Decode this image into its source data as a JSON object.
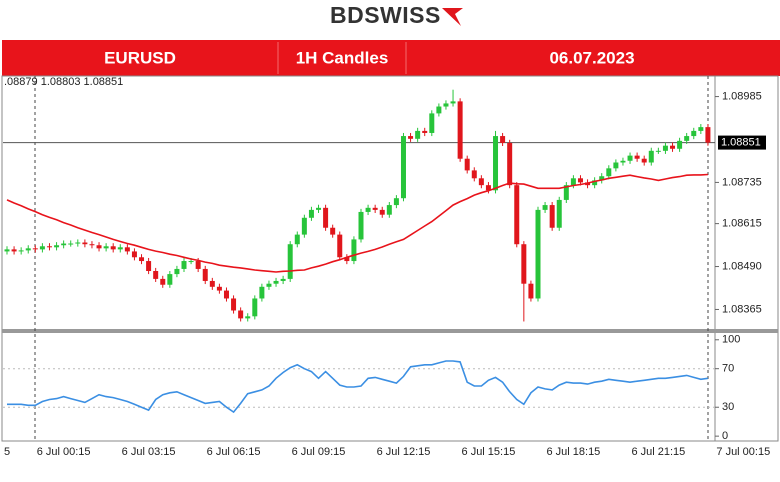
{
  "header": {
    "logo": "BDSWISS",
    "symbol": "EURUSD",
    "timeframe": "1H Candles",
    "date": "06.07.2023"
  },
  "chart_data": {
    "type": "candlestick",
    "ohlc_readout": ".08879 1.08803 1.08851",
    "last_price": {
      "value": 1.08851,
      "label": "1.08851"
    },
    "up_color": "#27c43a",
    "down_color": "#e0161c",
    "categories": [
      "5",
      null,
      null,
      null,
      null,
      null,
      null,
      null,
      "6 Jul 00:15",
      null,
      null,
      null,
      null,
      null,
      null,
      null,
      null,
      null,
      null,
      null,
      "6 Jul 03:15",
      null,
      null,
      null,
      null,
      null,
      null,
      null,
      null,
      null,
      null,
      null,
      "6 Jul 06:15",
      null,
      null,
      null,
      null,
      null,
      null,
      null,
      null,
      null,
      null,
      null,
      "6 Jul 09:15",
      null,
      null,
      null,
      null,
      null,
      null,
      null,
      null,
      null,
      null,
      null,
      "6 Jul 12:15",
      null,
      null,
      null,
      null,
      null,
      null,
      null,
      null,
      null,
      null,
      null,
      "6 Jul 15:15",
      null,
      null,
      null,
      null,
      null,
      null,
      null,
      null,
      null,
      null,
      null,
      "6 Jul 18:15",
      null,
      null,
      null,
      null,
      null,
      null,
      null,
      null,
      null,
      null,
      null,
      "6 Jul 21:15",
      null,
      null,
      null,
      null,
      null,
      null,
      null,
      null,
      null,
      null,
      null,
      "7 Jul 00:15"
    ],
    "open": [
      1.08534,
      1.0854,
      1.08534,
      1.08537,
      1.08543,
      1.0854,
      1.08549,
      1.08546,
      1.08552,
      1.08557,
      1.08557,
      1.0856,
      1.08555,
      1.08552,
      1.08543,
      1.08549,
      1.0854,
      1.08546,
      1.08534,
      1.08517,
      1.08506,
      1.08477,
      1.08454,
      1.08437,
      1.08468,
      1.08483,
      1.08506,
      1.08506,
      1.08483,
      1.08448,
      1.08431,
      1.0842,
      1.08397,
      1.08362,
      1.08339,
      1.08345,
      1.08397,
      1.08431,
      1.0844,
      1.08448,
      1.08454,
      1.08555,
      1.08583,
      1.08632,
      1.08655,
      1.08661,
      1.08603,
      1.08583,
      1.08517,
      1.08506,
      1.08569,
      1.08649,
      1.08661,
      1.08655,
      1.08641,
      1.08669,
      1.08689,
      1.0887,
      1.08862,
      1.08885,
      1.08879,
      1.08936,
      1.08956,
      1.08965,
      1.08971,
      1.08804,
      1.0877,
      1.08747,
      1.08727,
      1.08712,
      1.0887,
      1.0885,
      1.08727,
      1.08555,
      1.0844,
      1.08397,
      1.08655,
      1.08669,
      1.08603,
      1.08684,
      1.08727,
      1.08747,
      1.08735,
      1.08727,
      1.08741,
      1.08753,
      1.08776,
      1.08793,
      1.08798,
      1.08813,
      1.08804,
      1.08793,
      1.08827,
      1.08827,
      1.08842,
      1.08833,
      1.08856,
      1.0887,
      1.08885,
      1.08896,
      null,
      null,
      null,
      null,
      null
    ],
    "high": [
      1.08549,
      1.08549,
      1.08546,
      1.08552,
      1.08552,
      1.08558,
      1.08558,
      1.08561,
      1.08566,
      1.08566,
      1.08569,
      1.08569,
      1.08564,
      1.08561,
      1.08558,
      1.08558,
      1.08555,
      1.08555,
      1.08543,
      1.08526,
      1.08515,
      1.08486,
      1.08463,
      1.08477,
      1.08492,
      1.08515,
      1.08515,
      1.08515,
      1.08492,
      1.08457,
      1.0844,
      1.08429,
      1.08406,
      1.08371,
      1.08354,
      1.08406,
      1.0844,
      1.08449,
      1.08457,
      1.08463,
      1.08564,
      1.08592,
      1.08641,
      1.08664,
      1.0867,
      1.0867,
      1.08612,
      1.08592,
      1.08526,
      1.08578,
      1.08658,
      1.0867,
      1.0867,
      1.08664,
      1.08678,
      1.08698,
      1.08879,
      1.08879,
      1.08894,
      1.08894,
      1.08945,
      1.08965,
      1.08974,
      1.09005,
      1.0898,
      1.08813,
      1.08779,
      1.08756,
      1.08736,
      1.08885,
      1.08879,
      1.08859,
      1.08736,
      1.08564,
      1.08449,
      1.08664,
      1.08678,
      1.08678,
      1.08693,
      1.08736,
      1.08756,
      1.08756,
      1.08744,
      1.0875,
      1.08762,
      1.08785,
      1.08802,
      1.08807,
      1.08822,
      1.08822,
      1.08813,
      1.08836,
      1.08836,
      1.08851,
      1.08851,
      1.08865,
      1.08879,
      1.08894,
      1.08905,
      1.08905,
      null,
      null,
      null,
      null,
      null
    ],
    "low": [
      1.08525,
      1.08525,
      1.08525,
      1.08528,
      1.08531,
      1.08531,
      1.08537,
      1.08537,
      1.08543,
      1.08548,
      1.08548,
      1.08546,
      1.08543,
      1.08534,
      1.08534,
      1.08531,
      1.08531,
      1.08525,
      1.08508,
      1.08497,
      1.08468,
      1.08445,
      1.08428,
      1.08428,
      1.08459,
      1.08474,
      1.08497,
      1.08474,
      1.08439,
      1.08422,
      1.08411,
      1.08388,
      1.08353,
      1.0833,
      1.0833,
      1.08336,
      1.08388,
      1.08422,
      1.08431,
      1.08439,
      1.08445,
      1.08546,
      1.08574,
      1.08623,
      1.08646,
      1.08594,
      1.08574,
      1.08508,
      1.08497,
      1.08497,
      1.0856,
      1.0864,
      1.08646,
      1.08632,
      1.08632,
      1.0866,
      1.0868,
      1.08853,
      1.08853,
      1.0887,
      1.0887,
      1.08927,
      1.08947,
      1.08956,
      1.08795,
      1.08761,
      1.08738,
      1.08718,
      1.08703,
      1.08703,
      1.08841,
      1.08718,
      1.08546,
      1.0833,
      1.08388,
      1.08388,
      1.08646,
      1.08594,
      1.08594,
      1.08675,
      1.08718,
      1.08726,
      1.08718,
      1.08718,
      1.08732,
      1.08744,
      1.08767,
      1.08784,
      1.08789,
      1.08795,
      1.08784,
      1.08784,
      1.08818,
      1.08818,
      1.08824,
      1.08824,
      1.08847,
      1.08861,
      1.08876,
      1.08842,
      null,
      null,
      null,
      null,
      null
    ],
    "close": [
      1.0854,
      1.08534,
      1.08537,
      1.08543,
      1.0854,
      1.08549,
      1.08546,
      1.08552,
      1.08557,
      1.08557,
      1.0856,
      1.08555,
      1.08552,
      1.08543,
      1.08549,
      1.0854,
      1.08546,
      1.08534,
      1.08517,
      1.08506,
      1.08477,
      1.08454,
      1.08437,
      1.08468,
      1.08483,
      1.08506,
      1.08506,
      1.08483,
      1.08448,
      1.08431,
      1.0842,
      1.08397,
      1.08362,
      1.08339,
      1.08345,
      1.08397,
      1.08431,
      1.0844,
      1.08448,
      1.08454,
      1.08555,
      1.08583,
      1.08632,
      1.08655,
      1.08661,
      1.08603,
      1.08583,
      1.08517,
      1.08506,
      1.08569,
      1.08649,
      1.08661,
      1.08655,
      1.08641,
      1.08669,
      1.08689,
      1.0887,
      1.08862,
      1.08885,
      1.08879,
      1.08936,
      1.08956,
      1.08965,
      1.08971,
      1.08804,
      1.0877,
      1.08747,
      1.08727,
      1.08712,
      1.0887,
      1.0885,
      1.08727,
      1.08555,
      1.0844,
      1.08397,
      1.08655,
      1.08669,
      1.08603,
      1.08684,
      1.08727,
      1.08747,
      1.08735,
      1.08727,
      1.08741,
      1.08753,
      1.08776,
      1.08793,
      1.08798,
      1.08813,
      1.08804,
      1.08793,
      1.08827,
      1.08827,
      1.08842,
      1.08833,
      1.08856,
      1.0887,
      1.08885,
      1.08896,
      1.08851,
      null,
      null,
      null,
      null,
      null
    ],
    "ma": {
      "color": "#e8131b",
      "values": [
        1.08684,
        1.08675,
        1.08667,
        1.08658,
        1.0865,
        1.08641,
        1.08633,
        1.08626,
        1.08618,
        1.08611,
        1.08603,
        1.08596,
        1.08589,
        1.08583,
        1.08576,
        1.08569,
        1.08563,
        1.08557,
        1.08552,
        1.08546,
        1.0854,
        1.08535,
        1.08531,
        1.08526,
        1.08522,
        1.08517,
        1.08512,
        1.08508,
        1.08503,
        1.08499,
        1.08494,
        1.08491,
        1.08488,
        1.08486,
        1.08483,
        1.0848,
        1.08478,
        1.08476,
        1.08474,
        1.08476,
        1.08477,
        1.08479,
        1.0848,
        1.08486,
        1.08491,
        1.08497,
        1.08504,
        1.0851,
        1.08517,
        1.08523,
        1.08529,
        1.08534,
        1.0854,
        1.08547,
        1.08555,
        1.08562,
        1.08569,
        1.08582,
        1.08595,
        1.08608,
        1.08621,
        1.08637,
        1.08653,
        1.08669,
        1.08679,
        1.08688,
        1.08698,
        1.08705,
        1.08711,
        1.08718,
        1.08726,
        1.08733,
        1.08731,
        1.0873,
        1.08724,
        1.08718,
        1.08718,
        1.08718,
        1.08718,
        1.08722,
        1.08726,
        1.08729,
        1.08733,
        1.08738,
        1.08742,
        1.08747,
        1.0875,
        1.08753,
        1.08756,
        1.08752,
        1.08748,
        1.08745,
        1.08741,
        1.08745,
        1.08749,
        1.08752,
        1.08756,
        1.08757,
        1.08757,
        1.08758,
        null,
        null,
        null,
        null,
        null
      ]
    },
    "ylim": [
      1.08311,
      1.09042
    ],
    "yticks": [
      1.08365,
      {
        "value": 1.0849,
        "label": "1.08490"
      },
      1.08615,
      1.08735,
      1.08985
    ],
    "rsi": {
      "color": "#3b8fe3",
      "values": [
        33,
        33,
        33,
        32,
        32,
        36,
        38,
        39,
        41,
        39,
        37,
        35,
        39,
        43,
        41,
        40,
        38,
        36,
        33,
        30,
        27,
        38,
        43,
        45,
        46,
        43,
        40,
        37,
        34,
        35,
        36,
        30,
        25,
        34,
        44,
        46,
        48,
        52,
        60,
        66,
        71,
        74,
        70,
        67,
        60,
        67,
        60,
        53,
        51,
        51,
        52,
        60,
        61,
        59,
        57,
        55,
        62,
        72,
        73,
        74,
        74,
        76,
        78,
        78,
        77,
        56,
        52,
        52,
        58,
        61,
        56,
        46,
        38,
        33,
        45,
        51,
        49,
        48,
        53,
        56,
        55,
        55,
        54,
        56,
        57,
        59,
        58,
        57,
        56,
        57,
        58,
        59,
        60,
        60,
        61,
        62,
        63,
        61,
        59,
        60,
        null,
        null,
        null,
        null,
        null
      ],
      "ylim": [
        -4,
        106
      ],
      "yticks": [
        0,
        30,
        70,
        100
      ],
      "grid_levels": [
        30,
        70
      ]
    }
  }
}
